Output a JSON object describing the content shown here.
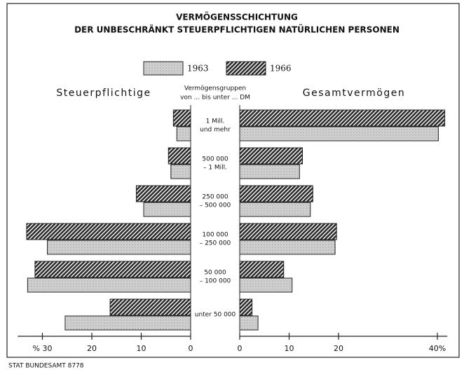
{
  "chart_data": {
    "type": "butterfly-bar",
    "title": "VERMÖGENSSCHICHTUNG",
    "subtitle": "DER UNBESCHRÄNKT STEUERPFLICHTIGEN NATÜRLICHEN PERSONEN",
    "center_label": [
      "Vermögensgruppen",
      "von ... bis unter ... DM"
    ],
    "categories": [
      [
        "1 Mill.",
        "und mehr"
      ],
      [
        "500 000",
        "– 1 Mill."
      ],
      [
        "250 000",
        "– 500 000"
      ],
      [
        "100 000",
        "– 250 000"
      ],
      [
        "50 000",
        "– 100 000"
      ],
      [
        "unter 50 000"
      ]
    ],
    "series": [
      {
        "name": "1963",
        "color": "#d4d4d4",
        "pattern": "dots"
      },
      {
        "name": "1966",
        "color": "#2a2a2a",
        "pattern": "hatch"
      }
    ],
    "panels": [
      {
        "title": "Steuerpflichtige",
        "side": "left",
        "xlim": [
          0,
          35
        ],
        "xticks": [
          {
            "value": 30,
            "label": "% 30"
          },
          20,
          10,
          0
        ],
        "values": [
          [
            2.8,
            4.0,
            9.5,
            29,
            33,
            25.4
          ],
          [
            3.5,
            4.5,
            11,
            33.2,
            31.5,
            16.3
          ]
        ]
      },
      {
        "title": "Gesamtvermögen",
        "side": "right",
        "xlim": [
          0,
          42
        ],
        "xticks": [
          0,
          10,
          20,
          {
            "value": 40,
            "label": "40%"
          }
        ],
        "values": [
          [
            40.2,
            12.1,
            14.3,
            19.3,
            10.6,
            3.7
          ],
          [
            41.5,
            12.7,
            14.8,
            19.6,
            8.9,
            2.5
          ]
        ]
      }
    ],
    "footer": "STAT BUNDESAMT 8778"
  }
}
